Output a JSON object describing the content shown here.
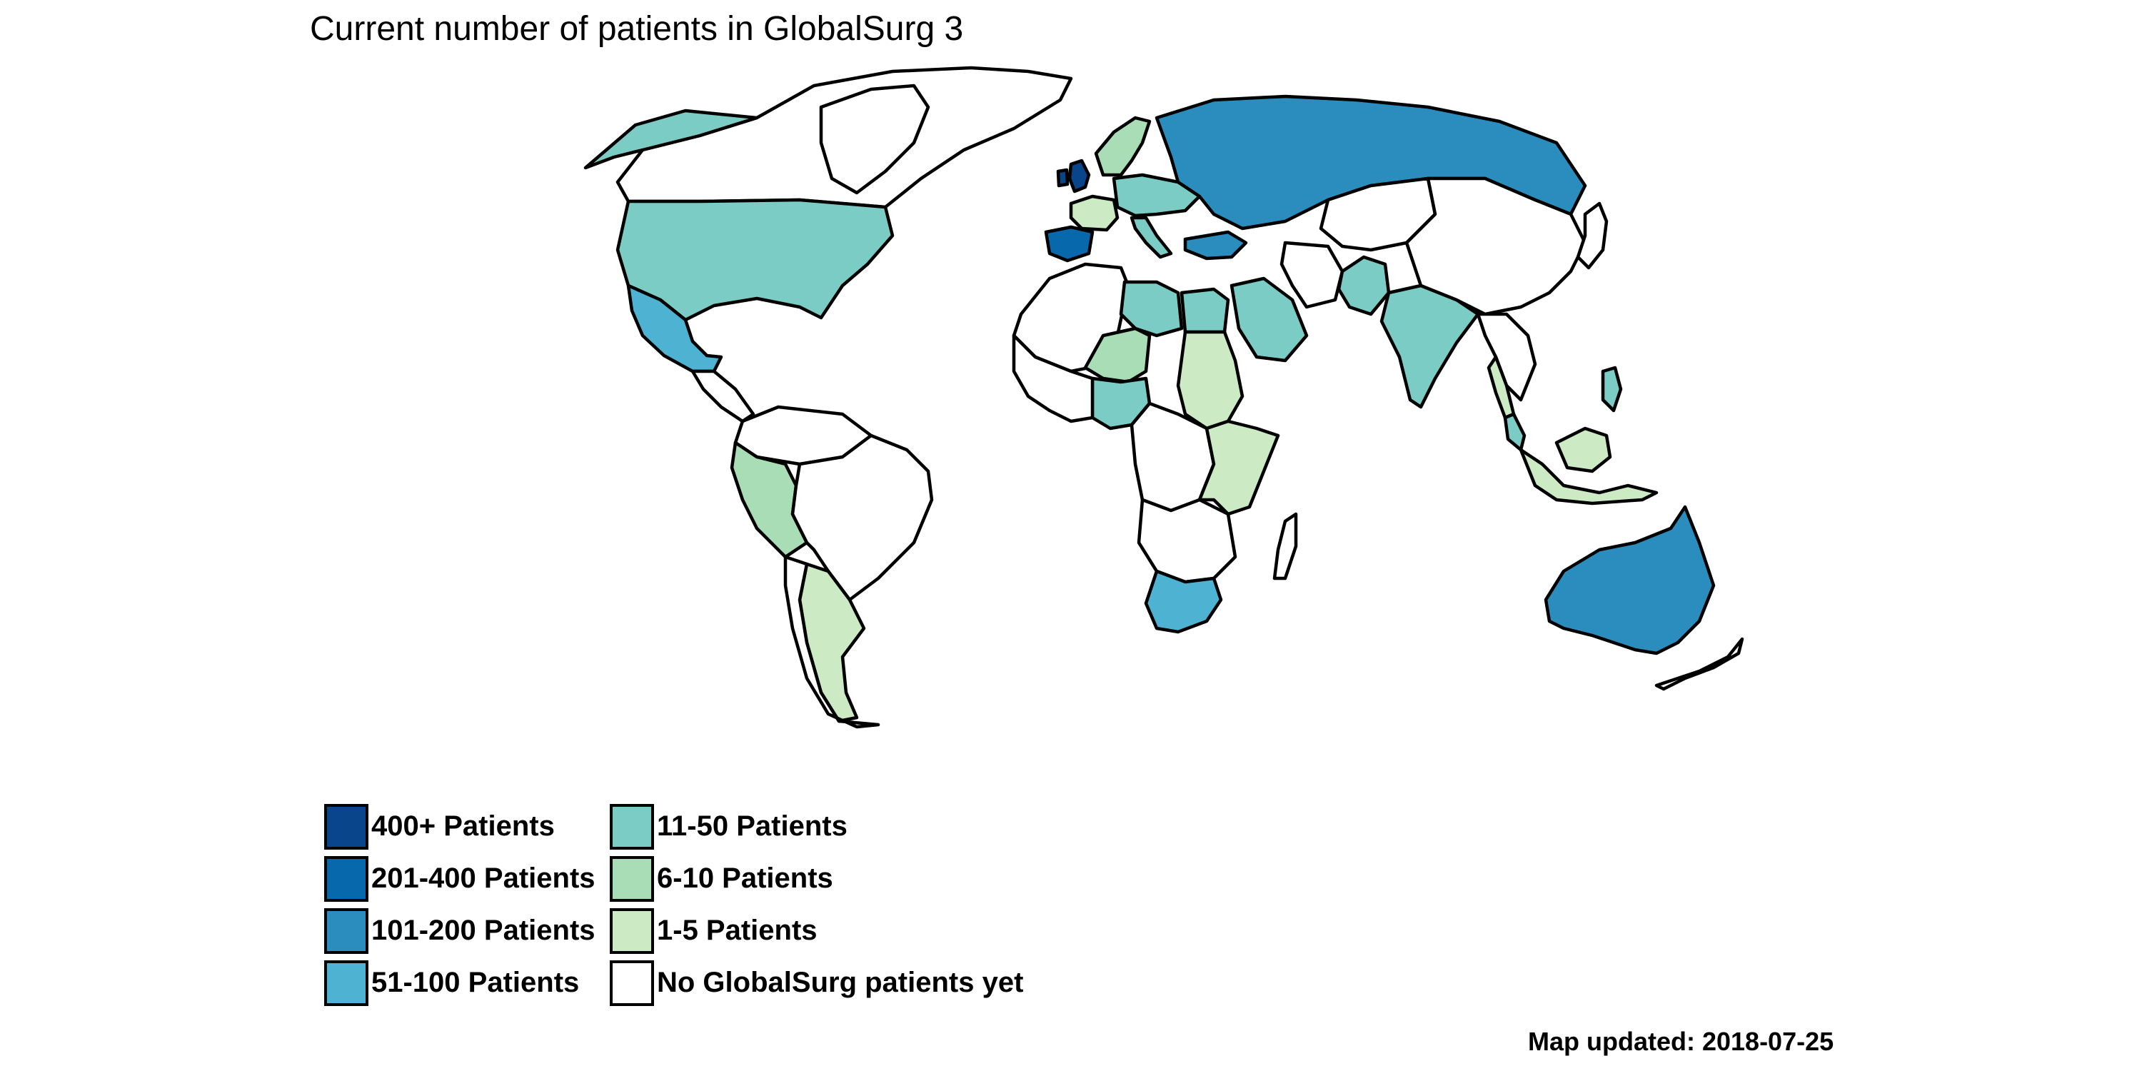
{
  "title": "Current number of patients in GlobalSurg 3",
  "legend": {
    "items": [
      {
        "label": "400+ Patients",
        "color": "#08458a"
      },
      {
        "label": "201-400 Patients",
        "color": "#0868ac"
      },
      {
        "label": "101-200 Patients",
        "color": "#2b8cbe"
      },
      {
        "label": "51-100 Patients",
        "color": "#4eb3d3"
      },
      {
        "label": "11-50 Patients",
        "color": "#7bccc4"
      },
      {
        "label": "6-10 Patients",
        "color": "#a8ddb5"
      },
      {
        "label": "1-5 Patients",
        "color": "#ccebc5"
      },
      {
        "label": "No GlobalSurg patients yet",
        "color": "#ffffff"
      }
    ]
  },
  "regions": [
    {
      "name": "canada",
      "category": "No GlobalSurg patients yet"
    },
    {
      "name": "alaska",
      "category": "11-50 Patients"
    },
    {
      "name": "united-states",
      "category": "11-50 Patients"
    },
    {
      "name": "mexico",
      "category": "51-100 Patients"
    },
    {
      "name": "greenland",
      "category": "No GlobalSurg patients yet"
    },
    {
      "name": "central-america",
      "category": "No GlobalSurg patients yet"
    },
    {
      "name": "colombia",
      "category": "No GlobalSurg patients yet"
    },
    {
      "name": "peru",
      "category": "6-10 Patients"
    },
    {
      "name": "brazil",
      "category": "No GlobalSurg patients yet"
    },
    {
      "name": "argentina",
      "category": "1-5 Patients"
    },
    {
      "name": "chile",
      "category": "No GlobalSurg patients yet"
    },
    {
      "name": "united-kingdom",
      "category": "400+ Patients"
    },
    {
      "name": "ireland",
      "category": "400+ Patients"
    },
    {
      "name": "spain",
      "category": "201-400 Patients"
    },
    {
      "name": "france",
      "category": "1-5 Patients"
    },
    {
      "name": "scandinavia",
      "category": "6-10 Patients"
    },
    {
      "name": "central-europe",
      "category": "11-50 Patients"
    },
    {
      "name": "italy",
      "category": "11-50 Patients"
    },
    {
      "name": "russia",
      "category": "101-200 Patients"
    },
    {
      "name": "turkey",
      "category": "101-200 Patients"
    },
    {
      "name": "north-africa-west",
      "category": "No GlobalSurg patients yet"
    },
    {
      "name": "libya",
      "category": "11-50 Patients"
    },
    {
      "name": "egypt",
      "category": "11-50 Patients"
    },
    {
      "name": "saudi-arabia",
      "category": "11-50 Patients"
    },
    {
      "name": "iran",
      "category": "No GlobalSurg patients yet"
    },
    {
      "name": "niger",
      "category": "6-10 Patients"
    },
    {
      "name": "sudan",
      "category": "1-5 Patients"
    },
    {
      "name": "nigeria",
      "category": "11-50 Patients"
    },
    {
      "name": "west-africa",
      "category": "No GlobalSurg patients yet"
    },
    {
      "name": "central-africa",
      "category": "No GlobalSurg patients yet"
    },
    {
      "name": "east-africa",
      "category": "1-5 Patients"
    },
    {
      "name": "southern-africa",
      "category": "No GlobalSurg patients yet"
    },
    {
      "name": "south-africa",
      "category": "51-100 Patients"
    },
    {
      "name": "madagascar",
      "category": "No GlobalSurg patients yet"
    },
    {
      "name": "central-asia",
      "category": "No GlobalSurg patients yet"
    },
    {
      "name": "pakistan",
      "category": "11-50 Patients"
    },
    {
      "name": "india",
      "category": "11-50 Patients"
    },
    {
      "name": "china",
      "category": "No GlobalSurg patients yet"
    },
    {
      "name": "southeast-asia",
      "category": "No GlobalSurg patients yet"
    },
    {
      "name": "thailand",
      "category": "1-5 Patients"
    },
    {
      "name": "malaysia",
      "category": "11-50 Patients"
    },
    {
      "name": "indonesia",
      "category": "1-5 Patients"
    },
    {
      "name": "borneo",
      "category": "1-5 Patients"
    },
    {
      "name": "philippines",
      "category": "11-50 Patients"
    },
    {
      "name": "japan",
      "category": "No GlobalSurg patients yet"
    },
    {
      "name": "australia",
      "category": "101-200 Patients"
    },
    {
      "name": "new-zealand",
      "category": "No GlobalSurg patients yet"
    }
  ],
  "footer": "Map updated: 2018-07-25"
}
